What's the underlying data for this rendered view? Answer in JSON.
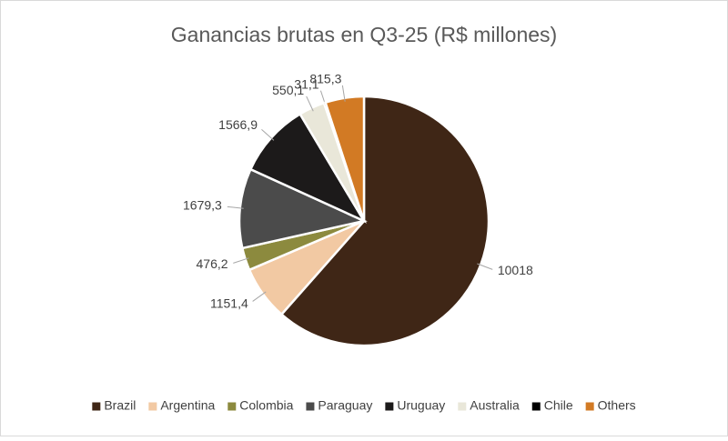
{
  "chart_data": {
    "type": "pie",
    "title": "Ganancias brutas en Q3-25 (R$ millones)",
    "categories": [
      "Brazil",
      "Argentina",
      "Colombia",
      "Paraguay",
      "Uruguay",
      "Australia",
      "Chile",
      "Others"
    ],
    "values": [
      10018,
      1151.4,
      476.2,
      1679.3,
      1566.9,
      550.1,
      31.1,
      815.3
    ],
    "value_labels": [
      "10018",
      "1151,4",
      "476,2",
      "1679,3",
      "1566,9",
      "550,1",
      "31,1",
      "815,3"
    ],
    "colors": [
      "#3f2616",
      "#f2c9a3",
      "#8c8a3e",
      "#4b4b4b",
      "#1c1a1a",
      "#e9e7d9",
      "#000000",
      "#d27a24"
    ],
    "legend": "bottom"
  }
}
